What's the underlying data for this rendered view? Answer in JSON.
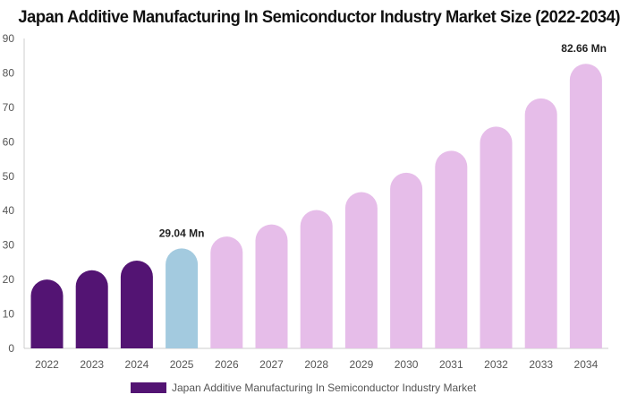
{
  "chart_data": {
    "type": "bar",
    "title": "Japan Additive Manufacturing In Semiconductor Industry Market Size (2022-2034)",
    "xlabel": "",
    "ylabel": "",
    "categories": [
      "2022",
      "2023",
      "2024",
      "2025",
      "2026",
      "2027",
      "2028",
      "2029",
      "2030",
      "2031",
      "2032",
      "2033",
      "2034"
    ],
    "series": [
      {
        "name": "Japan Additive Manufacturing In Semiconductor Industry Market",
        "values": [
          20.0,
          22.7,
          25.5,
          29.04,
          32.5,
          36.0,
          40.2,
          45.4,
          51.0,
          57.4,
          64.4,
          72.6,
          82.66
        ]
      }
    ],
    "ylim": [
      0,
      90
    ],
    "yticks": [
      0,
      10,
      20,
      30,
      40,
      50,
      60,
      70,
      80,
      90
    ],
    "grid": false,
    "legend_position": "bottom",
    "data_labels": [
      {
        "category": "2025",
        "text": "29.04 Mn"
      },
      {
        "category": "2034",
        "text": "82.66 Mn"
      }
    ],
    "colors": {
      "historical": "#531473",
      "base_year": "#a3cadf",
      "forecast": "#e6bde9",
      "axis": "#cccccc",
      "tick_text": "#555555"
    },
    "historical_count": 3,
    "base_year_index": 3
  }
}
